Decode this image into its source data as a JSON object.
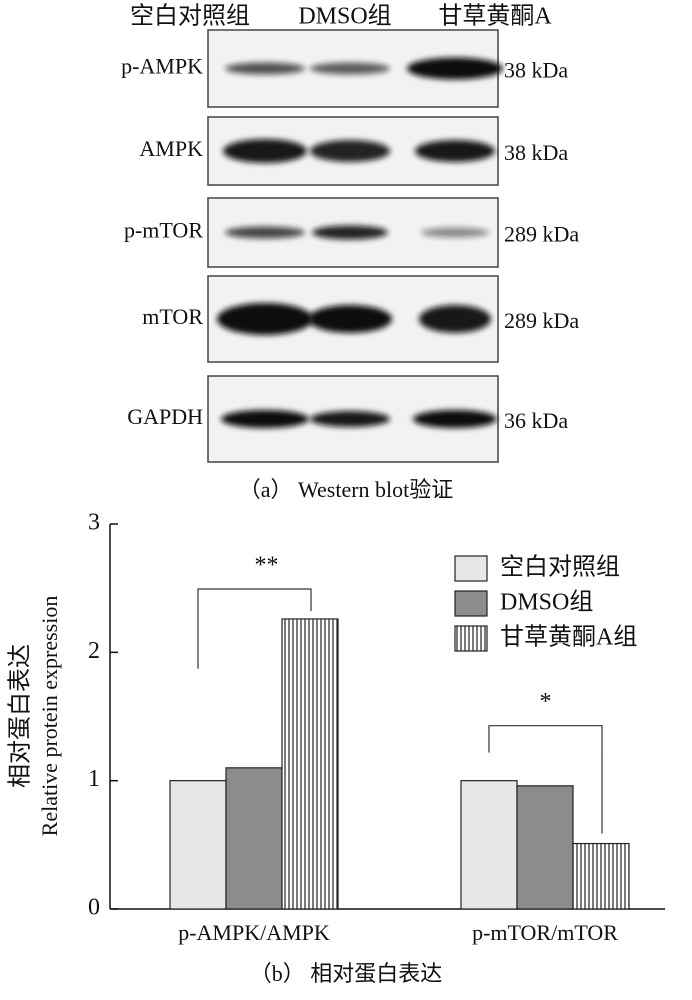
{
  "panel_a": {
    "lanes": [
      "空白对照组",
      "DMSO组",
      "甘草黄酮A"
    ],
    "rows": [
      {
        "label": "p-AMPK",
        "size": "38 kDa"
      },
      {
        "label": "AMPK",
        "size": "38 kDa"
      },
      {
        "label": "p-mTOR",
        "size": "289 kDa"
      },
      {
        "label": "mTOR",
        "size": "289 kDa"
      },
      {
        "label": "GAPDH",
        "size": "36 kDa"
      }
    ],
    "caption": "（a） Western blot验证"
  },
  "chart_data": {
    "type": "bar",
    "ylabel": [
      "相对蛋白表达",
      "Relative protein expression"
    ],
    "categories": [
      "p-AMPK/AMPK",
      "p-mTOR/mTOR"
    ],
    "series": [
      {
        "name": "空白对照组",
        "color": "#e6e7e8",
        "values": [
          1.0,
          1.0
        ]
      },
      {
        "name": "DMSO组",
        "color": "#8c8c8c",
        "values": [
          1.1,
          0.96
        ]
      },
      {
        "name": "甘草黄酮A组",
        "color": "#ffffff",
        "hatch": "vertical",
        "values": [
          2.26,
          0.51
        ]
      }
    ],
    "annotations": [
      "**",
      "*"
    ],
    "ylim": [
      0,
      3
    ],
    "yticks": [
      0,
      1,
      2,
      3
    ],
    "legend": "upper right",
    "caption": "（b） 相对蛋白表达"
  }
}
